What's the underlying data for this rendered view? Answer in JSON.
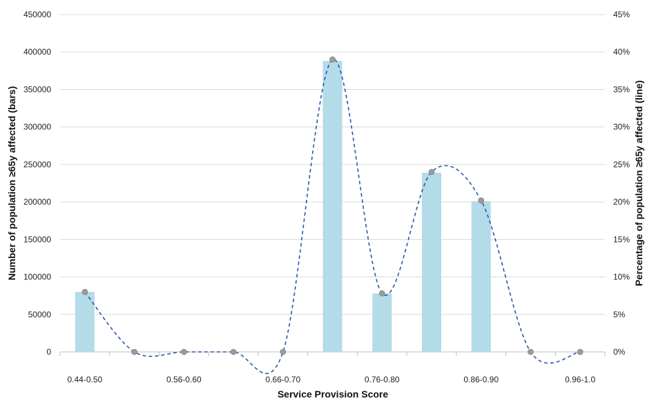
{
  "chart_data": {
    "type": "bar",
    "title": "",
    "xlabel": "Service Provision Score",
    "ylabel": "Number of population ≥65y affected (bars)",
    "y2label": "Percentage of population ≥65y affected (line)",
    "categories": [
      "0.44-0.50",
      "",
      "0.56-0.60",
      "",
      "0.66-0.70",
      "",
      "0.76-0.80",
      "",
      "0.86-0.90",
      "",
      "0.96-1.0"
    ],
    "x_tick_labels": [
      "0.44-0.50",
      "0.56-0.60",
      "0.66-0.70",
      "0.76-0.80",
      "0.86-0.90",
      "0.96-1.0"
    ],
    "series": [
      {
        "kind": "bar",
        "axis": "left",
        "color": "#b3dbe8",
        "values": [
          80000,
          0,
          0,
          0,
          0,
          388000,
          78000,
          239000,
          201000,
          0,
          0
        ]
      },
      {
        "kind": "line",
        "axis": "right",
        "style": "dashed-smooth",
        "color": "#2e55a8",
        "marker_color": "#9b9b9b",
        "values": [
          8,
          0,
          0,
          0,
          0,
          39,
          7.8,
          24,
          20.2,
          0,
          0
        ]
      }
    ],
    "ylim": [
      0,
      450000
    ],
    "y_ticks": [
      "0",
      "50000",
      "100000",
      "150000",
      "200000",
      "250000",
      "300000",
      "350000",
      "400000",
      "450000"
    ],
    "y2lim": [
      0,
      45
    ],
    "y2_ticks": [
      "0%",
      "5%",
      "10%",
      "15%",
      "20%",
      "25%",
      "30%",
      "35%",
      "40%",
      "45%"
    ],
    "grid": true,
    "legend": "none"
  }
}
